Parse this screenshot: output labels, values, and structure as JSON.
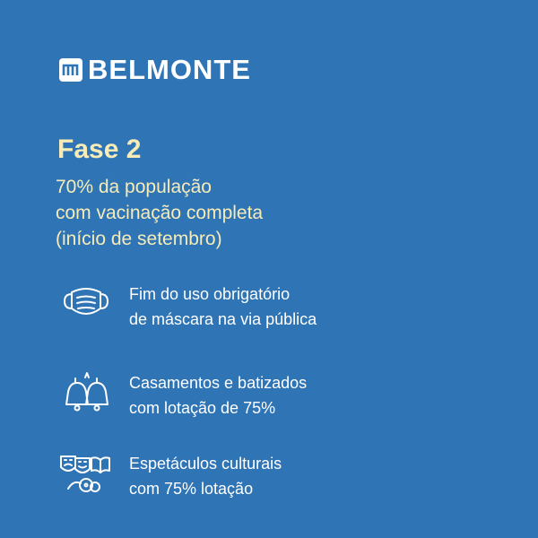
{
  "brand": {
    "name": "BELMONTE",
    "logo_icon": "belmonte-logo-icon"
  },
  "phase": {
    "title": "Fase 2",
    "subtitle_lines": [
      "70% da população",
      "com vacinação completa",
      "(início de setembro)"
    ]
  },
  "items": [
    {
      "icon": "face-mask-icon",
      "lines": [
        "Fim do uso obrigatório",
        "de máscara na via pública"
      ]
    },
    {
      "icon": "wedding-bells-icon",
      "lines": [
        "Casamentos e batizados",
        "com lotação de 75%"
      ]
    },
    {
      "icon": "theater-masks-icon",
      "lines": [
        "Espetáculos culturais",
        "com 75% lotação"
      ]
    }
  ],
  "colors": {
    "background": "#2f74b5",
    "heading": "#f7ecb8",
    "text": "#ffffff"
  }
}
